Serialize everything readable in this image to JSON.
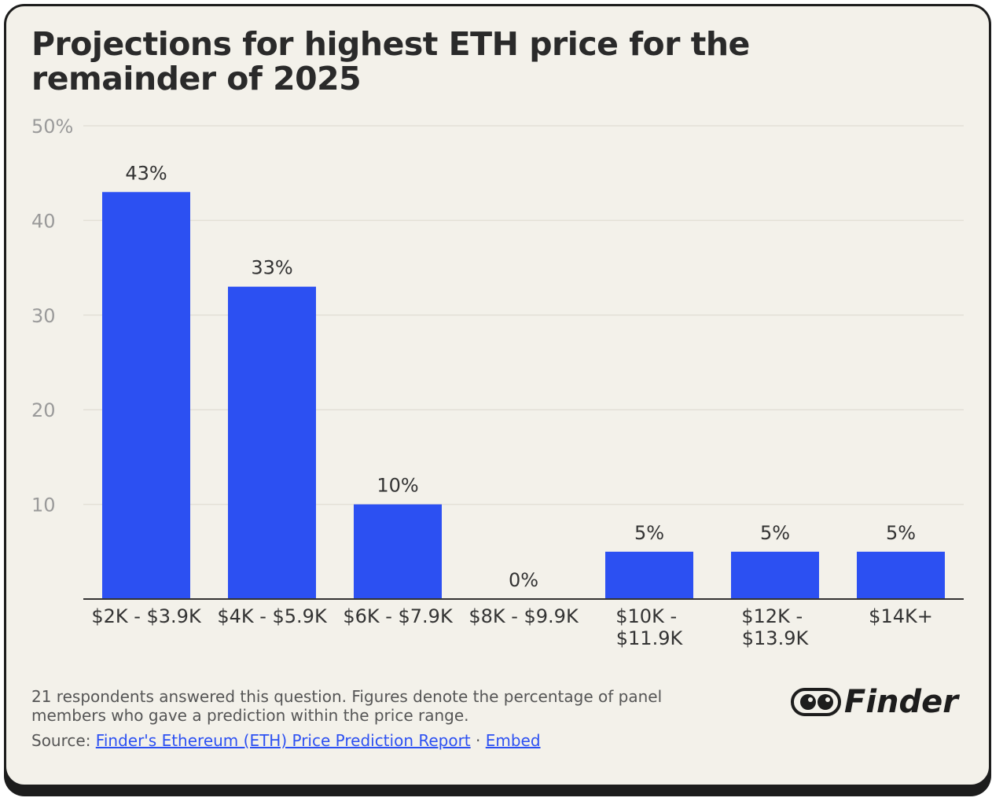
{
  "chart_data": {
    "type": "bar",
    "title": "Projections for highest ETH price for the remainder of 2025",
    "categories": [
      "$2K - $3.9K",
      "$4K - $5.9K",
      "$6K - $7.9K",
      "$8K - $9.9K",
      "$10K - $11.9K",
      "$12K - $13.9K",
      "$14K+"
    ],
    "values": [
      43,
      33,
      10,
      0,
      5,
      5,
      5
    ],
    "value_labels": [
      "43%",
      "33%",
      "10%",
      "0%",
      "5%",
      "5%",
      "5%"
    ],
    "color": "#2c50f2",
    "ylim": [
      0,
      50
    ],
    "yticks": [
      10,
      20,
      30,
      40,
      {
        "value": 50,
        "label": "50%"
      }
    ],
    "grid": true
  },
  "footer": {
    "note": "21 respondents answered this question. Figures denote the percentage of panel members who gave a prediction within the price range.",
    "source_label": "Source:",
    "source_link": "Finder's Ethereum (ETH) Price Prediction Report",
    "separator": "·",
    "embed_link": "Embed",
    "logo": "Finder"
  }
}
